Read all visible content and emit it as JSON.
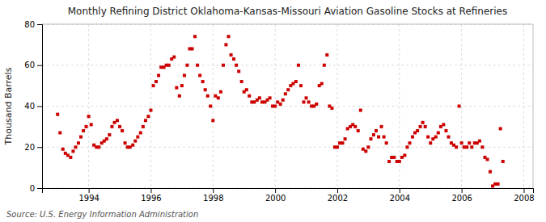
{
  "chart_data": {
    "type": "scatter",
    "title": "Monthly Refining District Oklahoma-Kansas-Missouri Aviation Gasoline Stocks at Refineries",
    "ylabel": "Thousand Barrels",
    "source": "Source: U.S. Energy Information Administration",
    "color": "#cc0000",
    "marker": "square",
    "grid": true,
    "xlim": [
      1992.5,
      2008.3
    ],
    "ylim": [
      0,
      80
    ],
    "xticks": [
      1994,
      1996,
      1998,
      2000,
      2002,
      2004,
      2006,
      2008
    ],
    "yticks": [
      0,
      20,
      40,
      60,
      80
    ],
    "x": [
      1993.0,
      1993.08,
      1993.17,
      1993.25,
      1993.33,
      1993.42,
      1993.5,
      1993.58,
      1993.67,
      1993.75,
      1993.83,
      1993.92,
      1994.0,
      1994.08,
      1994.17,
      1994.25,
      1994.33,
      1994.42,
      1994.5,
      1994.58,
      1994.67,
      1994.75,
      1994.83,
      1994.92,
      1995.0,
      1995.08,
      1995.17,
      1995.25,
      1995.33,
      1995.42,
      1995.5,
      1995.58,
      1995.67,
      1995.75,
      1995.83,
      1995.92,
      1996.0,
      1996.08,
      1996.17,
      1996.25,
      1996.33,
      1996.42,
      1996.5,
      1996.58,
      1996.67,
      1996.75,
      1996.83,
      1996.92,
      1997.0,
      1997.08,
      1997.17,
      1997.25,
      1997.33,
      1997.42,
      1997.5,
      1997.58,
      1997.67,
      1997.75,
      1997.83,
      1997.92,
      1998.0,
      1998.08,
      1998.17,
      1998.25,
      1998.33,
      1998.42,
      1998.5,
      1998.58,
      1998.67,
      1998.75,
      1998.83,
      1998.92,
      1999.0,
      1999.08,
      1999.17,
      1999.25,
      1999.33,
      1999.42,
      1999.5,
      1999.58,
      1999.67,
      1999.75,
      1999.83,
      1999.92,
      2000.0,
      2000.08,
      2000.17,
      2000.25,
      2000.33,
      2000.42,
      2000.5,
      2000.58,
      2000.67,
      2000.75,
      2000.83,
      2000.92,
      2001.0,
      2001.08,
      2001.17,
      2001.25,
      2001.33,
      2001.42,
      2001.5,
      2001.58,
      2001.67,
      2001.75,
      2001.83,
      2001.92,
      2002.0,
      2002.08,
      2002.17,
      2002.25,
      2002.33,
      2002.42,
      2002.5,
      2002.58,
      2002.67,
      2002.75,
      2002.83,
      2002.92,
      2003.0,
      2003.08,
      2003.17,
      2003.25,
      2003.33,
      2003.42,
      2003.5,
      2003.58,
      2003.67,
      2003.75,
      2003.83,
      2003.92,
      2004.0,
      2004.08,
      2004.17,
      2004.25,
      2004.33,
      2004.42,
      2004.5,
      2004.58,
      2004.67,
      2004.75,
      2004.83,
      2004.92,
      2005.0,
      2005.08,
      2005.17,
      2005.25,
      2005.33,
      2005.42,
      2005.5,
      2005.58,
      2005.67,
      2005.75,
      2005.83,
      2005.92,
      2006.0,
      2006.08,
      2006.17,
      2006.25,
      2006.33,
      2006.42,
      2006.5,
      2006.58,
      2006.67,
      2006.75,
      2006.83,
      2006.92,
      2007.0,
      2007.08,
      2007.17,
      2007.25,
      2007.33
    ],
    "values": [
      36,
      27,
      19,
      17,
      16,
      15,
      18,
      20,
      22,
      25,
      28,
      30,
      35,
      31,
      21,
      20,
      20,
      22,
      23,
      24,
      26,
      30,
      32,
      33,
      30,
      28,
      22,
      20,
      20,
      21,
      23,
      25,
      27,
      30,
      33,
      35,
      38,
      50,
      52,
      55,
      59,
      59,
      60,
      60,
      63,
      64,
      49,
      45,
      50,
      55,
      60,
      68,
      68,
      74,
      60,
      55,
      52,
      48,
      45,
      40,
      33,
      45,
      44,
      47,
      60,
      70,
      74,
      65,
      63,
      60,
      57,
      52,
      47,
      48,
      45,
      42,
      42,
      43,
      44,
      42,
      42,
      43,
      44,
      40,
      40,
      42,
      41,
      43,
      46,
      48,
      50,
      51,
      52,
      60,
      50,
      42,
      44,
      42,
      40,
      40,
      41,
      50,
      51,
      60,
      65,
      40,
      39,
      20,
      20,
      22,
      22,
      24,
      29,
      30,
      31,
      30,
      28,
      38,
      19,
      18,
      20,
      24,
      26,
      28,
      25,
      30,
      25,
      22,
      13,
      15,
      15,
      13,
      13,
      15,
      16,
      20,
      22,
      25,
      27,
      28,
      30,
      32,
      30,
      25,
      22,
      24,
      25,
      27,
      30,
      31,
      28,
      25,
      22,
      21,
      20,
      40,
      22,
      20,
      20,
      22,
      20,
      22,
      22,
      23,
      20,
      15,
      14,
      8,
      1,
      2,
      2,
      29,
      13
    ]
  }
}
